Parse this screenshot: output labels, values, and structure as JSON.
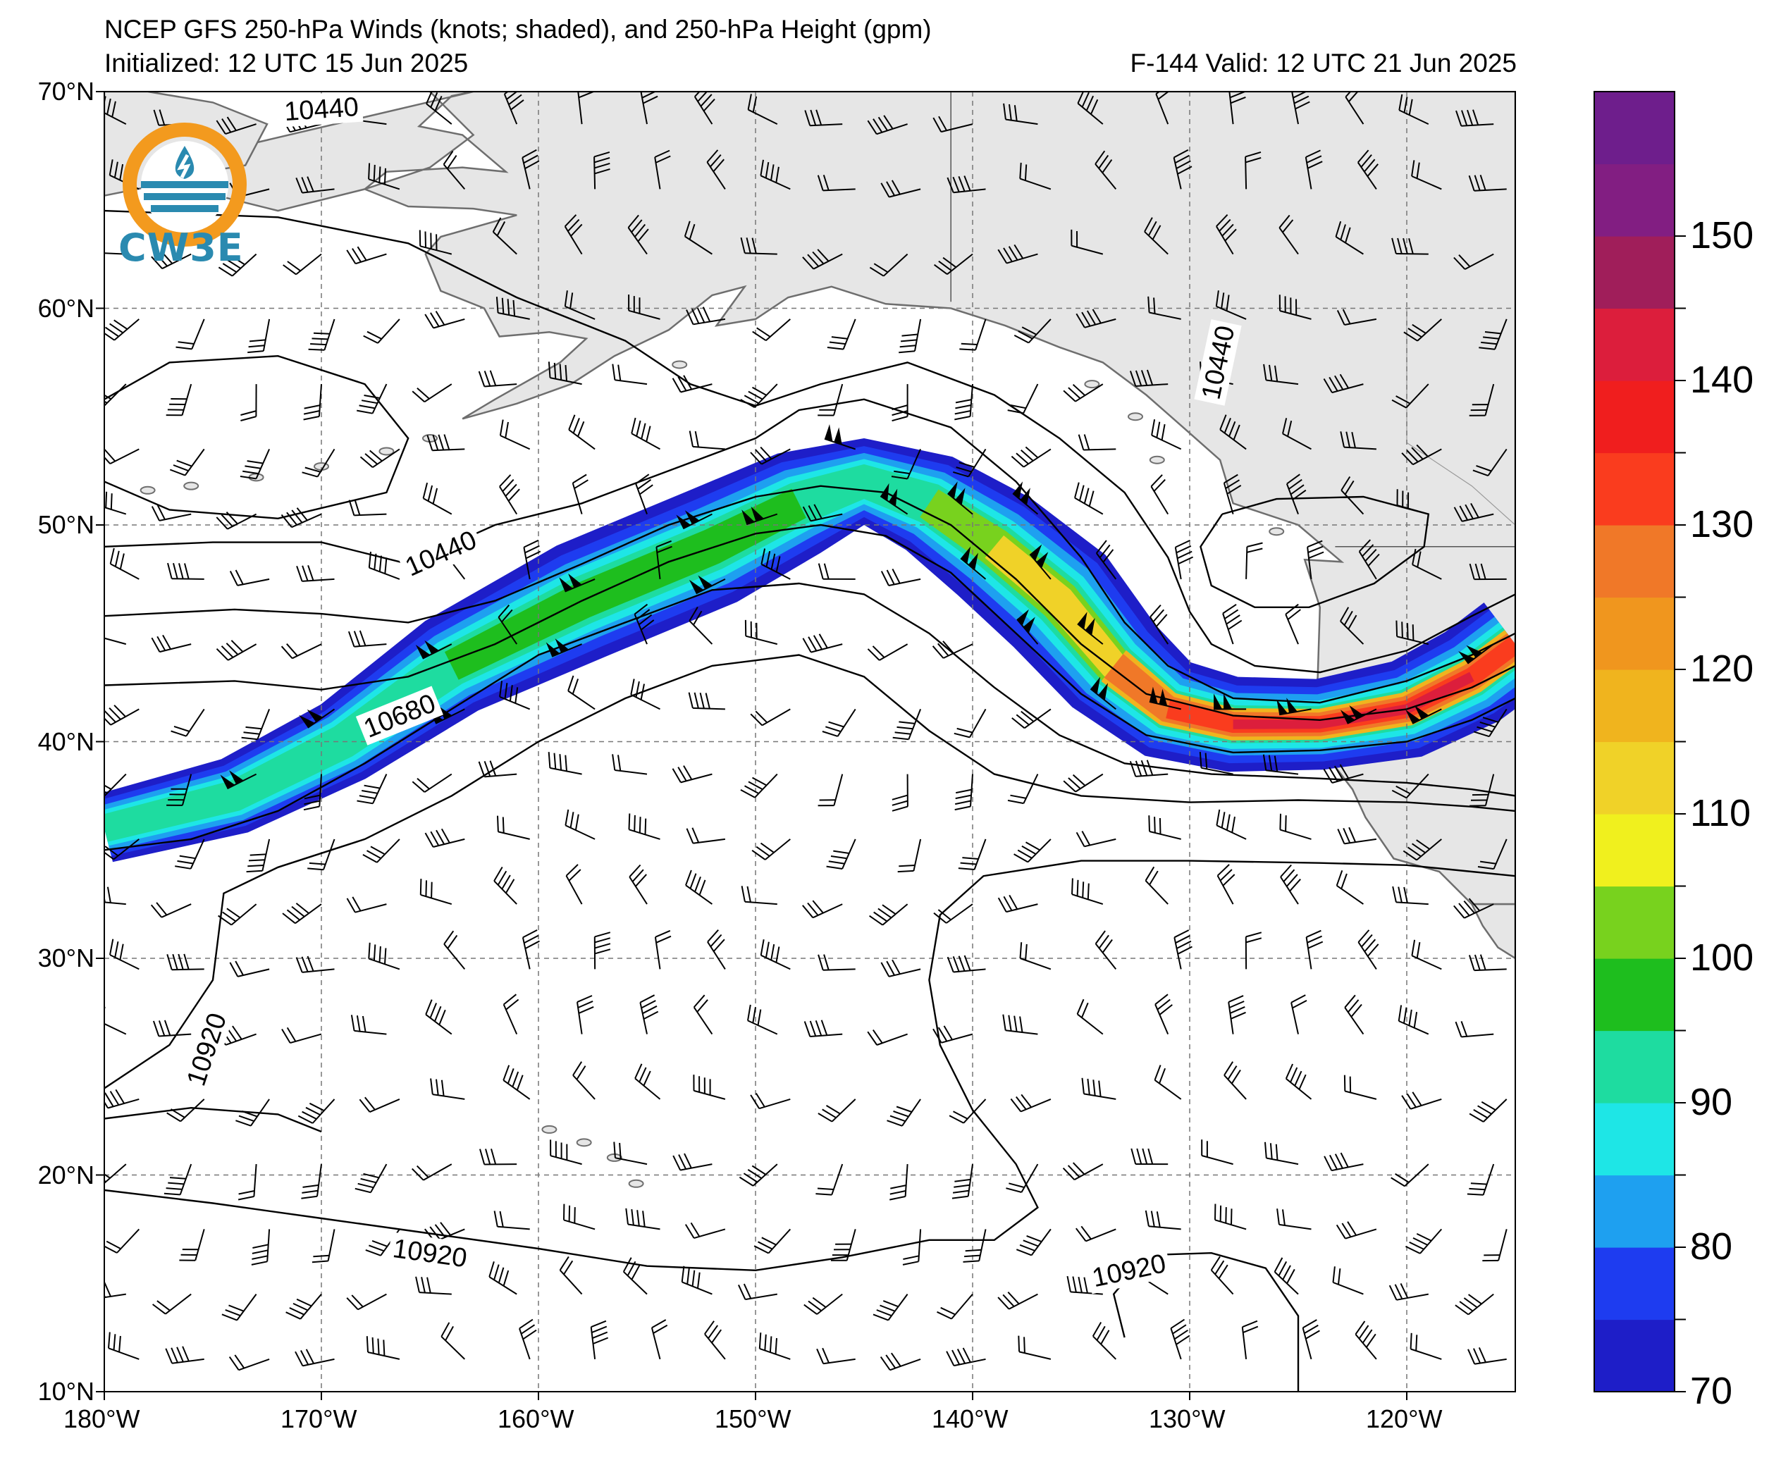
{
  "title": {
    "line1": "NCEP GFS 250-hPa Winds (knots; shaded), and 250-hPa Height (gpm)",
    "line2": "Initialized: 12 UTC 15 Jun 2025",
    "right": "F-144  Valid: 12 UTC 21 Jun 2025"
  },
  "logo": {
    "text": "CW3E",
    "icon": "cw3e-logo-icon"
  },
  "map": {
    "projection": "equirectangular",
    "lon_range": [
      -180,
      -115
    ],
    "lat_range": [
      10,
      70
    ],
    "grid": true,
    "lat_labels": [
      "70°N",
      "60°N",
      "50°N",
      "40°N",
      "30°N",
      "20°N",
      "10°N"
    ],
    "lon_labels": [
      "180°W",
      "170°W",
      "160°W",
      "150°W",
      "140°W",
      "130°W",
      "120°W"
    ],
    "land_color": "#e6e6e6",
    "coast_color": "#6e6e6e"
  },
  "contours": {
    "labels": [
      {
        "text": "10440",
        "lon": -170,
        "lat": 69.2,
        "rot": -4
      },
      {
        "text": "10440",
        "lon": -164.5,
        "lat": 48.7,
        "rot": -24
      },
      {
        "text": "10440",
        "lon": -128.7,
        "lat": 57.5,
        "rot": -78
      },
      {
        "text": "10680",
        "lon": -166.4,
        "lat": 41.2,
        "rot": -22
      },
      {
        "text": "10920",
        "lon": -175.3,
        "lat": 25.8,
        "rot": -72
      },
      {
        "text": "10920",
        "lon": -165,
        "lat": 16.4,
        "rot": 8
      },
      {
        "text": "10920",
        "lon": -132.8,
        "lat": 15.6,
        "rot": -12
      }
    ]
  },
  "colorbar": {
    "ticks": [
      "70",
      "75",
      "80",
      "85",
      "90",
      "95",
      "100",
      "105",
      "110",
      "115",
      "120",
      "125",
      "130",
      "135",
      "140",
      "145",
      "150"
    ],
    "levels": [
      70,
      75,
      80,
      85,
      90,
      95,
      100,
      105,
      110,
      115,
      120,
      125,
      130,
      135,
      140,
      145,
      150,
      155
    ],
    "colors": [
      "#1e1ec8",
      "#1e3cf0",
      "#1ea0f0",
      "#1ee6e6",
      "#1edca0",
      "#1ebe1e",
      "#78d21e",
      "#f0f01e",
      "#f0d228",
      "#f0b41e",
      "#f0961e",
      "#f07828",
      "#fa3c1e",
      "#f01e1e",
      "#dc1e3c",
      "#a01e5a",
      "#821e82",
      "#6e1e8c"
    ]
  },
  "jet": {
    "axis": [
      [
        -180,
        36
      ],
      [
        -174,
        37.5
      ],
      [
        -169,
        40
      ],
      [
        -164,
        43.5
      ],
      [
        -158,
        46.5
      ],
      [
        -152,
        49
      ],
      [
        -148,
        51
      ],
      [
        -145,
        52
      ],
      [
        -142,
        51
      ],
      [
        -139,
        49
      ],
      [
        -136,
        46.5
      ],
      [
        -133.5,
        43.5
      ],
      [
        -131,
        41.5
      ],
      [
        -128,
        40.8
      ],
      [
        -124,
        40.8
      ],
      [
        -120,
        41.5
      ],
      [
        -117,
        43
      ],
      [
        -115,
        44.5
      ]
    ],
    "band_halfwidth_deg": [
      1.6,
      1.8,
      2.0,
      2.4,
      2.8,
      2.8,
      2.5,
      2.0,
      2.4,
      2.8,
      3.0,
      2.7,
      2.4,
      2.2,
      2.1,
      2.3,
      2.4,
      2.4
    ]
  }
}
